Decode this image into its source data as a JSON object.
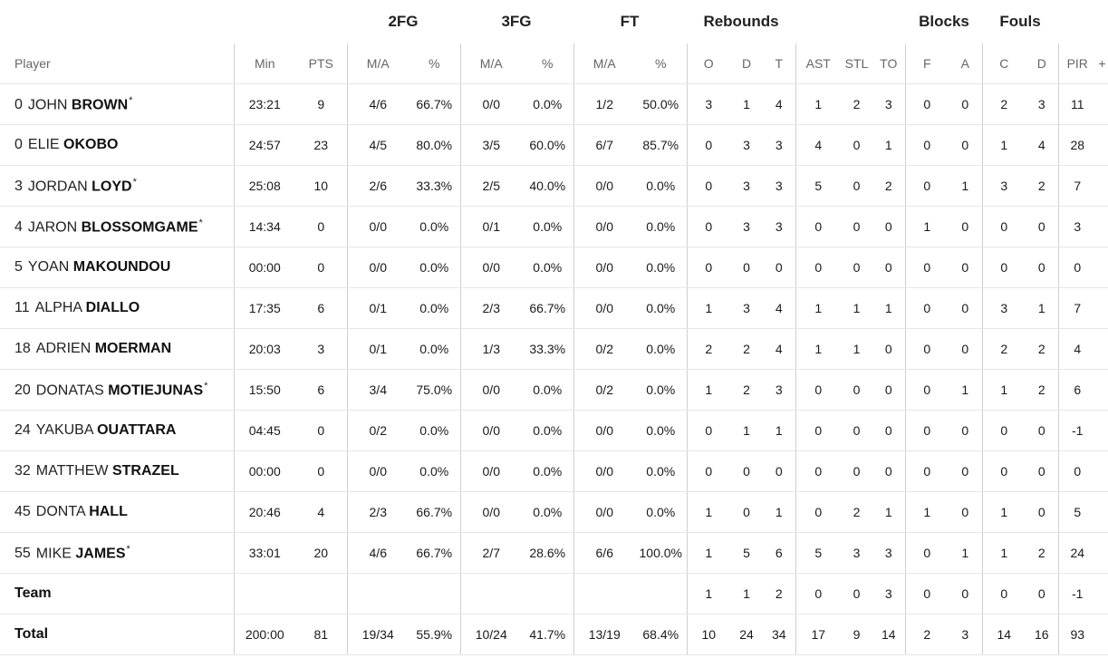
{
  "group_headers": {
    "fg2": "2FG",
    "fg3": "3FG",
    "ft": "FT",
    "rebounds": "Rebounds",
    "blocks": "Blocks",
    "fouls": "Fouls"
  },
  "columns": {
    "player": "Player",
    "min": "Min",
    "pts": "PTS",
    "fg2_ma": "M/A",
    "fg2_pct": "%",
    "fg3_ma": "M/A",
    "fg3_pct": "%",
    "ft_ma": "M/A",
    "ft_pct": "%",
    "reb_o": "O",
    "reb_d": "D",
    "reb_t": "T",
    "ast": "AST",
    "stl": "STL",
    "to": "TO",
    "blk_f": "F",
    "blk_a": "A",
    "foul_c": "C",
    "foul_d": "D",
    "pir": "PIR",
    "plusminus": "+"
  },
  "players": [
    {
      "num": "0",
      "first": "JOHN",
      "last": "BROWN",
      "starter": true,
      "min": "23:21",
      "pts": "9",
      "fg2_ma": "4/6",
      "fg2_pct": "66.7%",
      "fg3_ma": "0/0",
      "fg3_pct": "0.0%",
      "ft_ma": "1/2",
      "ft_pct": "50.0%",
      "reb_o": "3",
      "reb_d": "1",
      "reb_t": "4",
      "ast": "1",
      "stl": "2",
      "to": "3",
      "blk_f": "0",
      "blk_a": "0",
      "foul_c": "2",
      "foul_d": "3",
      "pir": "11"
    },
    {
      "num": "0",
      "first": "ELIE",
      "last": "OKOBO",
      "starter": false,
      "min": "24:57",
      "pts": "23",
      "fg2_ma": "4/5",
      "fg2_pct": "80.0%",
      "fg3_ma": "3/5",
      "fg3_pct": "60.0%",
      "ft_ma": "6/7",
      "ft_pct": "85.7%",
      "reb_o": "0",
      "reb_d": "3",
      "reb_t": "3",
      "ast": "4",
      "stl": "0",
      "to": "1",
      "blk_f": "0",
      "blk_a": "0",
      "foul_c": "1",
      "foul_d": "4",
      "pir": "28"
    },
    {
      "num": "3",
      "first": "JORDAN",
      "last": "LOYD",
      "starter": true,
      "min": "25:08",
      "pts": "10",
      "fg2_ma": "2/6",
      "fg2_pct": "33.3%",
      "fg3_ma": "2/5",
      "fg3_pct": "40.0%",
      "ft_ma": "0/0",
      "ft_pct": "0.0%",
      "reb_o": "0",
      "reb_d": "3",
      "reb_t": "3",
      "ast": "5",
      "stl": "0",
      "to": "2",
      "blk_f": "0",
      "blk_a": "1",
      "foul_c": "3",
      "foul_d": "2",
      "pir": "7"
    },
    {
      "num": "4",
      "first": "JARON",
      "last": "BLOSSOMGAME",
      "starter": true,
      "min": "14:34",
      "pts": "0",
      "fg2_ma": "0/0",
      "fg2_pct": "0.0%",
      "fg3_ma": "0/1",
      "fg3_pct": "0.0%",
      "ft_ma": "0/0",
      "ft_pct": "0.0%",
      "reb_o": "0",
      "reb_d": "3",
      "reb_t": "3",
      "ast": "0",
      "stl": "0",
      "to": "0",
      "blk_f": "1",
      "blk_a": "0",
      "foul_c": "0",
      "foul_d": "0",
      "pir": "3"
    },
    {
      "num": "5",
      "first": "YOAN",
      "last": "MAKOUNDOU",
      "starter": false,
      "min": "00:00",
      "pts": "0",
      "fg2_ma": "0/0",
      "fg2_pct": "0.0%",
      "fg3_ma": "0/0",
      "fg3_pct": "0.0%",
      "ft_ma": "0/0",
      "ft_pct": "0.0%",
      "reb_o": "0",
      "reb_d": "0",
      "reb_t": "0",
      "ast": "0",
      "stl": "0",
      "to": "0",
      "blk_f": "0",
      "blk_a": "0",
      "foul_c": "0",
      "foul_d": "0",
      "pir": "0"
    },
    {
      "num": "11",
      "first": "ALPHA",
      "last": "DIALLO",
      "starter": false,
      "min": "17:35",
      "pts": "6",
      "fg2_ma": "0/1",
      "fg2_pct": "0.0%",
      "fg3_ma": "2/3",
      "fg3_pct": "66.7%",
      "ft_ma": "0/0",
      "ft_pct": "0.0%",
      "reb_o": "1",
      "reb_d": "3",
      "reb_t": "4",
      "ast": "1",
      "stl": "1",
      "to": "1",
      "blk_f": "0",
      "blk_a": "0",
      "foul_c": "3",
      "foul_d": "1",
      "pir": "7"
    },
    {
      "num": "18",
      "first": "ADRIEN",
      "last": "MOERMAN",
      "starter": false,
      "min": "20:03",
      "pts": "3",
      "fg2_ma": "0/1",
      "fg2_pct": "0.0%",
      "fg3_ma": "1/3",
      "fg3_pct": "33.3%",
      "ft_ma": "0/2",
      "ft_pct": "0.0%",
      "reb_o": "2",
      "reb_d": "2",
      "reb_t": "4",
      "ast": "1",
      "stl": "1",
      "to": "0",
      "blk_f": "0",
      "blk_a": "0",
      "foul_c": "2",
      "foul_d": "2",
      "pir": "4"
    },
    {
      "num": "20",
      "first": "DONATAS",
      "last": "MOTIEJUNAS",
      "starter": true,
      "min": "15:50",
      "pts": "6",
      "fg2_ma": "3/4",
      "fg2_pct": "75.0%",
      "fg3_ma": "0/0",
      "fg3_pct": "0.0%",
      "ft_ma": "0/2",
      "ft_pct": "0.0%",
      "reb_o": "1",
      "reb_d": "2",
      "reb_t": "3",
      "ast": "0",
      "stl": "0",
      "to": "0",
      "blk_f": "0",
      "blk_a": "1",
      "foul_c": "1",
      "foul_d": "2",
      "pir": "6"
    },
    {
      "num": "24",
      "first": "YAKUBA",
      "last": "OUATTARA",
      "starter": false,
      "min": "04:45",
      "pts": "0",
      "fg2_ma": "0/2",
      "fg2_pct": "0.0%",
      "fg3_ma": "0/0",
      "fg3_pct": "0.0%",
      "ft_ma": "0/0",
      "ft_pct": "0.0%",
      "reb_o": "0",
      "reb_d": "1",
      "reb_t": "1",
      "ast": "0",
      "stl": "0",
      "to": "0",
      "blk_f": "0",
      "blk_a": "0",
      "foul_c": "0",
      "foul_d": "0",
      "pir": "-1"
    },
    {
      "num": "32",
      "first": "MATTHEW",
      "last": "STRAZEL",
      "starter": false,
      "min": "00:00",
      "pts": "0",
      "fg2_ma": "0/0",
      "fg2_pct": "0.0%",
      "fg3_ma": "0/0",
      "fg3_pct": "0.0%",
      "ft_ma": "0/0",
      "ft_pct": "0.0%",
      "reb_o": "0",
      "reb_d": "0",
      "reb_t": "0",
      "ast": "0",
      "stl": "0",
      "to": "0",
      "blk_f": "0",
      "blk_a": "0",
      "foul_c": "0",
      "foul_d": "0",
      "pir": "0"
    },
    {
      "num": "45",
      "first": "DONTA",
      "last": "HALL",
      "starter": false,
      "min": "20:46",
      "pts": "4",
      "fg2_ma": "2/3",
      "fg2_pct": "66.7%",
      "fg3_ma": "0/0",
      "fg3_pct": "0.0%",
      "ft_ma": "0/0",
      "ft_pct": "0.0%",
      "reb_o": "1",
      "reb_d": "0",
      "reb_t": "1",
      "ast": "0",
      "stl": "2",
      "to": "1",
      "blk_f": "1",
      "blk_a": "0",
      "foul_c": "1",
      "foul_d": "0",
      "pir": "5"
    },
    {
      "num": "55",
      "first": "MIKE",
      "last": "JAMES",
      "starter": true,
      "min": "33:01",
      "pts": "20",
      "fg2_ma": "4/6",
      "fg2_pct": "66.7%",
      "fg3_ma": "2/7",
      "fg3_pct": "28.6%",
      "ft_ma": "6/6",
      "ft_pct": "100.0%",
      "reb_o": "1",
      "reb_d": "5",
      "reb_t": "6",
      "ast": "5",
      "stl": "3",
      "to": "3",
      "blk_f": "0",
      "blk_a": "1",
      "foul_c": "1",
      "foul_d": "2",
      "pir": "24"
    }
  ],
  "team": {
    "label": "Team",
    "min": "",
    "pts": "",
    "fg2_ma": "",
    "fg2_pct": "",
    "fg3_ma": "",
    "fg3_pct": "",
    "ft_ma": "",
    "ft_pct": "",
    "reb_o": "1",
    "reb_d": "1",
    "reb_t": "2",
    "ast": "0",
    "stl": "0",
    "to": "3",
    "blk_f": "0",
    "blk_a": "0",
    "foul_c": "0",
    "foul_d": "0",
    "pir": "-1"
  },
  "total": {
    "label": "Total",
    "min": "200:00",
    "pts": "81",
    "fg2_ma": "19/34",
    "fg2_pct": "55.9%",
    "fg3_ma": "10/24",
    "fg3_pct": "41.7%",
    "ft_ma": "13/19",
    "ft_pct": "68.4%",
    "reb_o": "10",
    "reb_d": "24",
    "reb_t": "34",
    "ast": "17",
    "stl": "9",
    "to": "14",
    "blk_f": "2",
    "blk_a": "3",
    "foul_c": "14",
    "foul_d": "16",
    "pir": "93"
  },
  "starter_mark": "*"
}
